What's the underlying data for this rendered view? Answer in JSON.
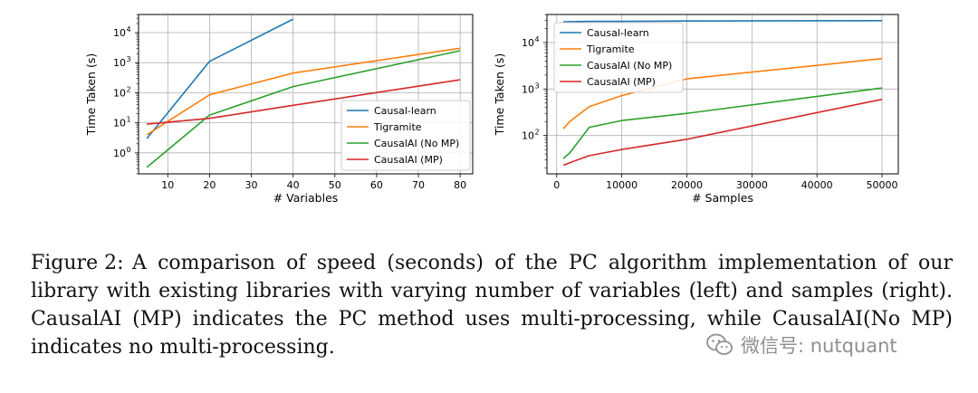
{
  "chart_data": [
    {
      "type": "line",
      "title": "",
      "xlabel": "# Variables",
      "ylabel": "Time Taken (s)",
      "yscale": "log",
      "xlim": [
        3,
        83
      ],
      "ylim": [
        0.2,
        40000
      ],
      "xticks": [
        10,
        20,
        30,
        40,
        50,
        60,
        70,
        80
      ],
      "xtick_labels": [
        "10",
        "20",
        "30",
        "40",
        "50",
        "60",
        "70",
        "80"
      ],
      "yticks": [
        1,
        10,
        100,
        1000,
        10000
      ],
      "ytick_labels": [
        "10",
        "10",
        "10",
        "10",
        "10"
      ],
      "ytick_exponents": [
        "0",
        "1",
        "2",
        "3",
        "4"
      ],
      "legend_position": "lower-right",
      "series": [
        {
          "name": "Causal-learn",
          "color": "#1f77b4",
          "x": [
            5,
            20,
            40
          ],
          "y": [
            3,
            1100,
            28000
          ]
        },
        {
          "name": "Tigramite",
          "color": "#ff7f0e",
          "x": [
            5,
            20,
            40,
            80
          ],
          "y": [
            4,
            85,
            450,
            3000
          ]
        },
        {
          "name": "CausalAI (No MP)",
          "color": "#2ca02c",
          "x": [
            5,
            20,
            40,
            80
          ],
          "y": [
            0.33,
            18,
            160,
            2500
          ]
        },
        {
          "name": "CausalAI (MP)",
          "color": "#d62728",
          "x": [
            5,
            20,
            40,
            80
          ],
          "y": [
            9,
            14,
            38,
            270
          ]
        }
      ]
    },
    {
      "type": "line",
      "title": "",
      "xlabel": "# Samples",
      "ylabel": "Time Taken (s)",
      "yscale": "log",
      "xlim": [
        -1500,
        52500
      ],
      "ylim": [
        15,
        40000
      ],
      "xticks": [
        0,
        10000,
        20000,
        30000,
        40000,
        50000
      ],
      "xtick_labels": [
        "0",
        "10000",
        "20000",
        "30000",
        "40000",
        "50000"
      ],
      "yticks": [
        100,
        1000,
        10000
      ],
      "ytick_labels": [
        "10",
        "10",
        "10"
      ],
      "ytick_exponents": [
        "2",
        "3",
        "4"
      ],
      "legend_position": "top-left",
      "series": [
        {
          "name": "Causal-learn",
          "color": "#1f77b4",
          "x": [
            1000,
            5000,
            10000,
            20000,
            50000
          ],
          "y": [
            28000,
            28500,
            28500,
            29000,
            29500
          ]
        },
        {
          "name": "Tigramite",
          "color": "#ff7f0e",
          "x": [
            1000,
            2000,
            5000,
            10000,
            20000,
            50000
          ],
          "y": [
            140,
            200,
            420,
            720,
            1650,
            4500
          ]
        },
        {
          "name": "CausalAI (No MP)",
          "color": "#2ca02c",
          "x": [
            1000,
            2000,
            5000,
            10000,
            20000,
            50000
          ],
          "y": [
            32,
            42,
            150,
            210,
            300,
            1050
          ]
        },
        {
          "name": "CausalAI (MP)",
          "color": "#d62728",
          "x": [
            1000,
            2000,
            5000,
            10000,
            20000,
            50000
          ],
          "y": [
            23,
            26,
            37,
            50,
            83,
            600
          ]
        }
      ]
    }
  ],
  "caption": {
    "label": "Figure 2:",
    "text": "A comparison of speed (seconds) of the PC algorithm implementation of our library with existing libraries with varying number of variables (left) and samples (right). CausalAI (MP) indicates the PC method uses multi-processing, while CausalAI(No MP) indicates no multi-processing."
  },
  "watermark": {
    "text": "微信号: nutquant",
    "icon": "wechat-icon"
  }
}
